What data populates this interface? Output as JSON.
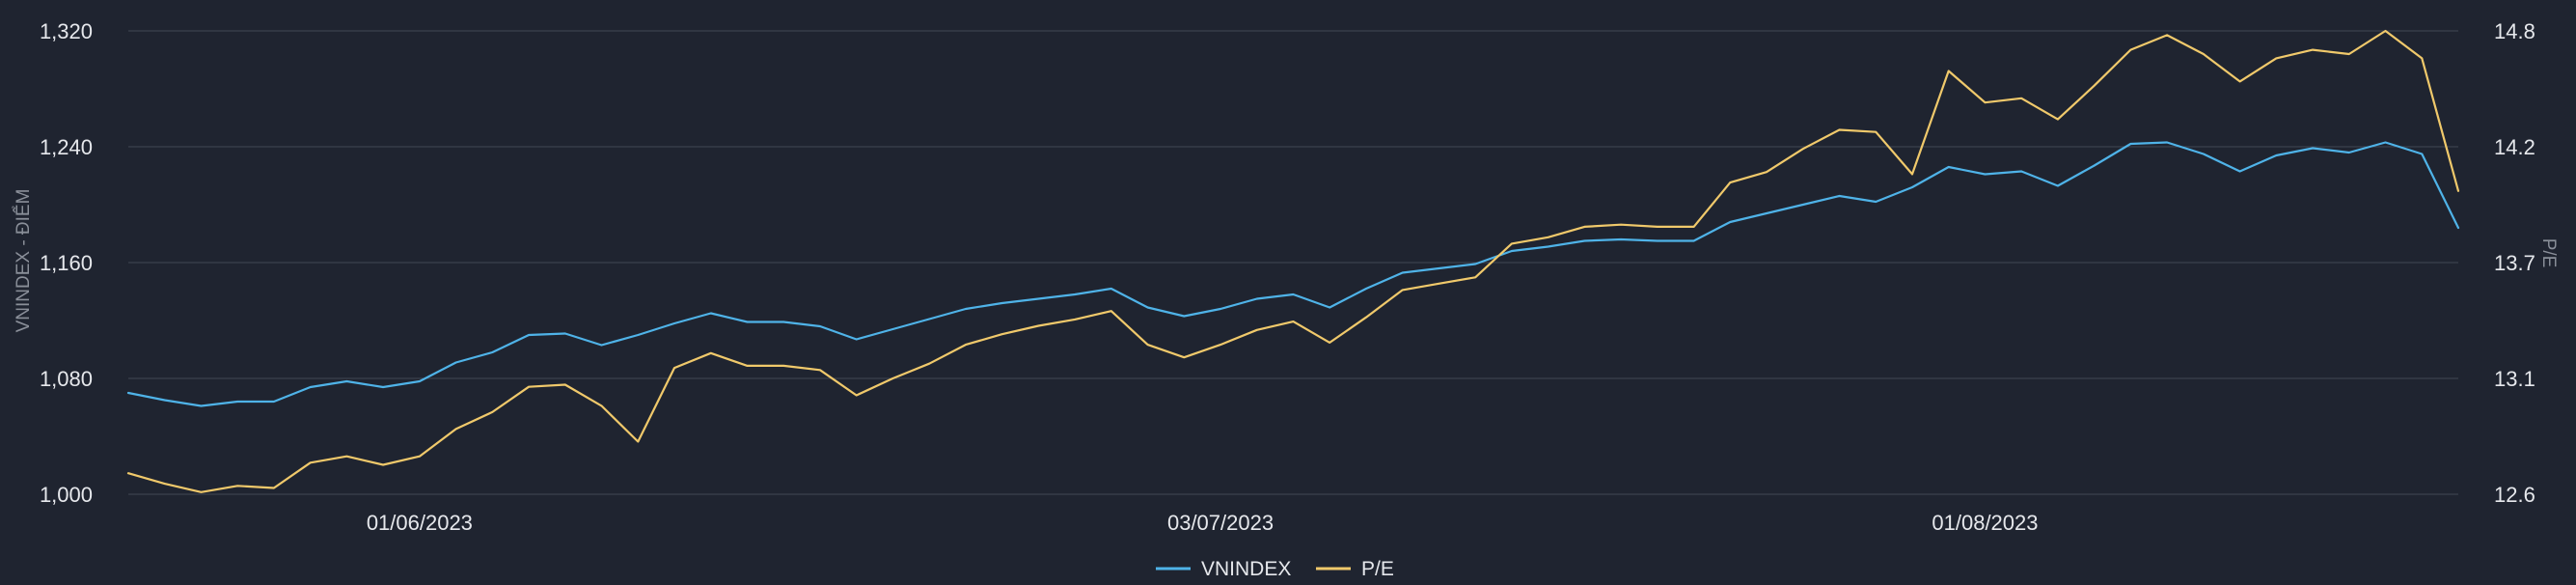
{
  "chart_data": {
    "type": "line",
    "xlabel": "",
    "x_tick_labels": [
      "01/06/2023",
      "03/07/2023",
      "01/08/2023"
    ],
    "y_left": {
      "label": "VNINDEX - ĐIỂM",
      "ylim": [
        1000,
        1320
      ],
      "ticks": [
        1000,
        1080,
        1160,
        1240,
        1320
      ],
      "tick_labels": [
        "1,000",
        "1,080",
        "1,160",
        "1,240",
        "1,320"
      ]
    },
    "y_right": {
      "label": "P/E",
      "ylim": [
        12.6,
        14.8
      ],
      "ticks": [
        12.6,
        13.1,
        13.7,
        14.2,
        14.8
      ],
      "tick_labels": [
        "12.6",
        "13.1",
        "13.7",
        "14.2",
        "14.8"
      ]
    },
    "grid": true,
    "legend": "bottom-center",
    "series": [
      {
        "name": "VNINDEX",
        "axis": "left",
        "color": "#4fb3e8",
        "values": [
          1070,
          1065,
          1061,
          1064,
          1064,
          1074,
          1078,
          1074,
          1078,
          1091,
          1098,
          1110,
          1111,
          1103,
          1110,
          1118,
          1125,
          1119,
          1119,
          1116,
          1107,
          1114,
          1121,
          1128,
          1132,
          1135,
          1138,
          1142,
          1129,
          1123,
          1128,
          1135,
          1138,
          1129,
          1142,
          1153,
          1156,
          1159,
          1168,
          1171,
          1175,
          1176,
          1175,
          1175,
          1188,
          1194,
          1200,
          1206,
          1202,
          1212,
          1226,
          1221,
          1223,
          1213,
          1227,
          1242,
          1243,
          1235,
          1223,
          1234,
          1239,
          1236,
          1243,
          1235,
          1184
        ]
      },
      {
        "name": "P/E",
        "axis": "right",
        "color": "#f0c96b",
        "values": [
          12.7,
          12.65,
          12.61,
          12.64,
          12.63,
          12.75,
          12.78,
          12.74,
          12.78,
          12.91,
          12.99,
          13.11,
          13.12,
          13.02,
          12.85,
          13.2,
          13.27,
          13.21,
          13.21,
          13.19,
          13.07,
          13.15,
          13.22,
          13.31,
          13.36,
          13.4,
          13.43,
          13.47,
          13.31,
          13.25,
          13.31,
          13.38,
          13.42,
          13.32,
          13.44,
          13.57,
          13.6,
          13.63,
          13.79,
          13.82,
          13.87,
          13.88,
          13.87,
          13.87,
          14.08,
          14.13,
          14.24,
          14.33,
          14.32,
          14.12,
          14.61,
          14.46,
          14.48,
          14.38,
          14.54,
          14.71,
          14.78,
          14.69,
          14.56,
          14.67,
          14.71,
          14.69,
          14.8,
          14.67,
          14.04
        ]
      }
    ]
  }
}
